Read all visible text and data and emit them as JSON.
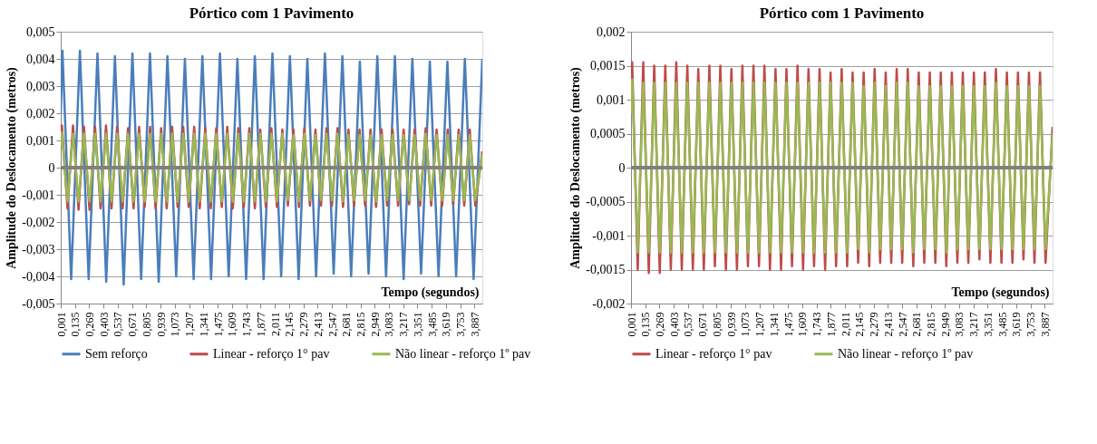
{
  "chart_data": [
    {
      "type": "line",
      "title": "Pórtico com 1 Pavimento",
      "xlabel": "Tempo (segundos)",
      "ylabel": "Amplitude do Deslocamento (metros)",
      "xlim": [
        0.001,
        3.96
      ],
      "xticks": [
        {
          "value": 0.001,
          "label": "0,001"
        },
        {
          "value": 0.135,
          "label": "0,135"
        },
        {
          "value": 0.269,
          "label": "0,269"
        },
        {
          "value": 0.403,
          "label": "0,403"
        },
        {
          "value": 0.537,
          "label": "0,537"
        },
        {
          "value": 0.671,
          "label": "0,671"
        },
        {
          "value": 0.805,
          "label": "0,805"
        },
        {
          "value": 0.939,
          "label": "0,939"
        },
        {
          "value": 1.073,
          "label": "1,073"
        },
        {
          "value": 1.207,
          "label": "1,207"
        },
        {
          "value": 1.341,
          "label": "1,341"
        },
        {
          "value": 1.475,
          "label": "1,475"
        },
        {
          "value": 1.609,
          "label": "1,609"
        },
        {
          "value": 1.743,
          "label": "1,743"
        },
        {
          "value": 1.877,
          "label": "1,877"
        },
        {
          "value": 2.011,
          "label": "2,011"
        },
        {
          "value": 2.145,
          "label": "2,145"
        },
        {
          "value": 2.279,
          "label": "2,279"
        },
        {
          "value": 2.413,
          "label": "2,413"
        },
        {
          "value": 2.547,
          "label": "2,547"
        },
        {
          "value": 2.681,
          "label": "2,681"
        },
        {
          "value": 2.815,
          "label": "2,815"
        },
        {
          "value": 2.949,
          "label": "2,949"
        },
        {
          "value": 3.083,
          "label": "3,083"
        },
        {
          "value": 3.217,
          "label": "3,217"
        },
        {
          "value": 3.351,
          "label": "3,351"
        },
        {
          "value": 3.485,
          "label": "3,485"
        },
        {
          "value": 3.619,
          "label": "3,619"
        },
        {
          "value": 3.753,
          "label": "3,753"
        },
        {
          "value": 3.887,
          "label": "3,887"
        }
      ],
      "ylim": [
        -0.005,
        0.005
      ],
      "yticks": [
        {
          "value": -0.005,
          "label": "-0,005"
        },
        {
          "value": -0.004,
          "label": "-0,004"
        },
        {
          "value": -0.003,
          "label": "-0,003"
        },
        {
          "value": -0.002,
          "label": "-0,002"
        },
        {
          "value": -0.001,
          "label": "-0,001"
        },
        0,
        {
          "value": 0.001,
          "label": "0,001"
        },
        {
          "value": 0.002,
          "label": "0,002"
        },
        {
          "value": 0.003,
          "label": "0,003"
        },
        {
          "value": 0.004,
          "label": "0,004"
        },
        {
          "value": 0.005,
          "label": "0,005"
        }
      ],
      "grid": "y",
      "legend": "bottom",
      "line_style": "solid",
      "ref_lines": [
        {
          "axis": "y",
          "value": 0,
          "color": "#808080"
        }
      ],
      "series": [
        {
          "name": "Sem reforço",
          "color": "#4a7ebb",
          "x": [
            0.001,
            0.017,
            0.099,
            0.181,
            0.263,
            0.346,
            0.428,
            0.51,
            0.592,
            0.674,
            0.756,
            0.839,
            0.921,
            1.003,
            1.085,
            1.167,
            1.249,
            1.331,
            1.413,
            1.496,
            1.578,
            1.66,
            1.742,
            1.824,
            1.906,
            1.989,
            2.071,
            2.153,
            2.235,
            2.317,
            2.399,
            2.482,
            2.564,
            2.646,
            2.728,
            2.81,
            2.892,
            2.974,
            3.056,
            3.139,
            3.221,
            3.303,
            3.385,
            3.467,
            3.549,
            3.632,
            3.714,
            3.796,
            3.878,
            3.96
          ],
          "values": [
            0.002,
            0.0043,
            -0.0041,
            0.0043,
            -0.0041,
            0.0042,
            -0.0042,
            0.0041,
            -0.0043,
            0.0042,
            -0.0041,
            0.0042,
            -0.0042,
            0.0041,
            -0.004,
            0.004,
            -0.0041,
            0.0041,
            -0.0041,
            0.0042,
            -0.004,
            0.004,
            -0.0041,
            0.0041,
            -0.0041,
            0.0042,
            -0.004,
            0.0041,
            -0.0041,
            0.004,
            -0.004,
            0.0042,
            -0.0039,
            0.0041,
            -0.004,
            0.0039,
            -0.0039,
            0.0041,
            -0.004,
            0.0041,
            -0.0041,
            0.004,
            -0.0039,
            0.0039,
            -0.004,
            0.0039,
            -0.004,
            0.004,
            -0.0041,
            0.004
          ]
        },
        {
          "name": "Linear - reforço 1° pav",
          "color": "#be4b48",
          "x": [
            0.001,
            0.012,
            0.064,
            0.116,
            0.168,
            0.219,
            0.271,
            0.323,
            0.375,
            0.426,
            0.478,
            0.53,
            0.582,
            0.633,
            0.685,
            0.737,
            0.789,
            0.84,
            0.892,
            0.944,
            0.996,
            1.047,
            1.099,
            1.151,
            1.203,
            1.254,
            1.306,
            1.358,
            1.41,
            1.461,
            1.513,
            1.565,
            1.617,
            1.668,
            1.72,
            1.772,
            1.824,
            1.875,
            1.927,
            1.979,
            2.031,
            2.082,
            2.134,
            2.186,
            2.238,
            2.289,
            2.341,
            2.393,
            2.445,
            2.496,
            2.548,
            2.6,
            2.652,
            2.703,
            2.755,
            2.807,
            2.859,
            2.91,
            2.962,
            3.014,
            3.066,
            3.117,
            3.169,
            3.221,
            3.273,
            3.324,
            3.376,
            3.428,
            3.48,
            3.531,
            3.583,
            3.635,
            3.687,
            3.738,
            3.79,
            3.842,
            3.894,
            3.96
          ],
          "values": [
            0.0009,
            0.00155,
            -0.0015,
            0.00155,
            -0.00155,
            0.0015,
            -0.00155,
            0.0015,
            -0.0015,
            0.00155,
            -0.0015,
            0.0015,
            -0.0015,
            0.00145,
            -0.0015,
            0.0015,
            -0.00145,
            0.0015,
            -0.0015,
            0.00145,
            -0.0015,
            0.0015,
            -0.00145,
            0.0015,
            -0.00145,
            0.0015,
            -0.0015,
            0.00145,
            -0.0015,
            0.00145,
            -0.00145,
            0.0015,
            -0.0015,
            0.00145,
            -0.00145,
            0.00145,
            -0.0015,
            0.0014,
            -0.00145,
            0.00145,
            -0.00145,
            0.0014,
            -0.0014,
            0.0014,
            -0.00145,
            0.00145,
            -0.0014,
            0.0014,
            -0.0014,
            0.00145,
            -0.0014,
            0.00145,
            -0.00145,
            0.0014,
            -0.0014,
            0.0014,
            -0.0014,
            0.0014,
            -0.00145,
            0.0014,
            -0.0014,
            0.0014,
            -0.0014,
            0.0014,
            -0.00135,
            0.0014,
            -0.0014,
            0.00145,
            -0.0014,
            0.0014,
            -0.0014,
            0.0014,
            -0.00135,
            0.0014,
            -0.0014,
            0.0014,
            -0.0014,
            0.0006
          ]
        },
        {
          "name": "Não linear - reforço 1º pav",
          "color": "#98b954",
          "x": [
            0.001,
            0.012,
            0.064,
            0.116,
            0.168,
            0.219,
            0.271,
            0.323,
            0.375,
            0.426,
            0.478,
            0.53,
            0.582,
            0.633,
            0.685,
            0.737,
            0.789,
            0.84,
            0.892,
            0.944,
            0.996,
            1.047,
            1.099,
            1.151,
            1.203,
            1.254,
            1.306,
            1.358,
            1.41,
            1.461,
            1.513,
            1.565,
            1.617,
            1.668,
            1.72,
            1.772,
            1.824,
            1.875,
            1.927,
            1.979,
            2.031,
            2.082,
            2.134,
            2.186,
            2.238,
            2.289,
            2.341,
            2.393,
            2.445,
            2.496,
            2.548,
            2.6,
            2.652,
            2.703,
            2.755,
            2.807,
            2.859,
            2.91,
            2.962,
            3.014,
            3.066,
            3.117,
            3.169,
            3.221,
            3.273,
            3.324,
            3.376,
            3.428,
            3.48,
            3.531,
            3.583,
            3.635,
            3.687,
            3.738,
            3.79,
            3.842,
            3.894,
            3.96
          ],
          "values": [
            0.0008,
            0.0013,
            -0.00125,
            0.00125,
            -0.00125,
            0.00125,
            -0.00125,
            0.00125,
            -0.00125,
            0.00125,
            -0.00125,
            0.00125,
            -0.00125,
            0.00125,
            -0.00125,
            0.00125,
            -0.00125,
            0.00125,
            -0.00125,
            0.00125,
            -0.00125,
            0.00125,
            -0.00125,
            0.00125,
            -0.00125,
            0.00125,
            -0.00125,
            0.00125,
            -0.00125,
            0.00125,
            -0.00125,
            0.00125,
            -0.00125,
            0.00125,
            -0.00125,
            0.00125,
            -0.00125,
            0.00125,
            -0.00125,
            0.00125,
            -0.00125,
            0.00125,
            -0.0012,
            0.0012,
            -0.00125,
            0.00125,
            -0.0012,
            0.0012,
            -0.0012,
            0.00125,
            -0.0012,
            0.00125,
            -0.00125,
            0.0012,
            -0.0012,
            0.0012,
            -0.0012,
            0.0012,
            -0.00125,
            0.0012,
            -0.0012,
            0.0012,
            -0.0012,
            0.0012,
            -0.0012,
            0.0012,
            -0.0012,
            0.00125,
            -0.0012,
            0.0012,
            -0.0012,
            0.0012,
            -0.0012,
            0.0012,
            -0.0012,
            0.0012,
            -0.0012,
            0.0005
          ]
        }
      ]
    },
    {
      "type": "line",
      "title": "Pórtico com 1 Pavimento",
      "xlabel": "Tempo (segundos)",
      "ylabel": "Amplitude do Deslocamento (metros)",
      "xlim": [
        0.001,
        3.96
      ],
      "xticks": [
        {
          "value": 0.001,
          "label": "0,001"
        },
        {
          "value": 0.135,
          "label": "0,135"
        },
        {
          "value": 0.269,
          "label": "0,269"
        },
        {
          "value": 0.403,
          "label": "0,403"
        },
        {
          "value": 0.537,
          "label": "0,537"
        },
        {
          "value": 0.671,
          "label": "0,671"
        },
        {
          "value": 0.805,
          "label": "0,805"
        },
        {
          "value": 0.939,
          "label": "0,939"
        },
        {
          "value": 1.073,
          "label": "1,073"
        },
        {
          "value": 1.207,
          "label": "1,207"
        },
        {
          "value": 1.341,
          "label": "1,341"
        },
        {
          "value": 1.475,
          "label": "1,475"
        },
        {
          "value": 1.609,
          "label": "1,609"
        },
        {
          "value": 1.743,
          "label": "1,743"
        },
        {
          "value": 1.877,
          "label": "1,877"
        },
        {
          "value": 2.011,
          "label": "2,011"
        },
        {
          "value": 2.145,
          "label": "2,145"
        },
        {
          "value": 2.279,
          "label": "2,279"
        },
        {
          "value": 2.413,
          "label": "2,413"
        },
        {
          "value": 2.547,
          "label": "2,547"
        },
        {
          "value": 2.681,
          "label": "2,681"
        },
        {
          "value": 2.815,
          "label": "2,815"
        },
        {
          "value": 2.949,
          "label": "2,949"
        },
        {
          "value": 3.083,
          "label": "3,083"
        },
        {
          "value": 3.217,
          "label": "3,217"
        },
        {
          "value": 3.351,
          "label": "3,351"
        },
        {
          "value": 3.485,
          "label": "3,485"
        },
        {
          "value": 3.619,
          "label": "3,619"
        },
        {
          "value": 3.753,
          "label": "3,753"
        },
        {
          "value": 3.887,
          "label": "3,887"
        }
      ],
      "ylim": [
        -0.002,
        0.002
      ],
      "yticks": [
        {
          "value": -0.002,
          "label": "-0,002"
        },
        {
          "value": -0.0015,
          "label": "-0,0015"
        },
        {
          "value": -0.001,
          "label": "-0,001"
        },
        {
          "value": -0.0005,
          "label": "-0,0005"
        },
        0,
        {
          "value": 0.0005,
          "label": "0,0005"
        },
        {
          "value": 0.001,
          "label": "0,001"
        },
        {
          "value": 0.0015,
          "label": "0,0015"
        },
        {
          "value": 0.002,
          "label": "0,002"
        }
      ],
      "grid": "y",
      "legend": "bottom",
      "line_style": "solid",
      "ref_lines": [
        {
          "axis": "y",
          "value": 0,
          "color": "#808080"
        }
      ],
      "series": [
        {
          "name": "Linear - reforço 1° pav",
          "color": "#be4b48",
          "x": [
            0.001,
            0.012,
            0.064,
            0.116,
            0.168,
            0.219,
            0.271,
            0.323,
            0.375,
            0.426,
            0.478,
            0.53,
            0.582,
            0.633,
            0.685,
            0.737,
            0.789,
            0.84,
            0.892,
            0.944,
            0.996,
            1.047,
            1.099,
            1.151,
            1.203,
            1.254,
            1.306,
            1.358,
            1.41,
            1.461,
            1.513,
            1.565,
            1.617,
            1.668,
            1.72,
            1.772,
            1.824,
            1.875,
            1.927,
            1.979,
            2.031,
            2.082,
            2.134,
            2.186,
            2.238,
            2.289,
            2.341,
            2.393,
            2.445,
            2.496,
            2.548,
            2.6,
            2.652,
            2.703,
            2.755,
            2.807,
            2.859,
            2.91,
            2.962,
            3.014,
            3.066,
            3.117,
            3.169,
            3.221,
            3.273,
            3.324,
            3.376,
            3.428,
            3.48,
            3.531,
            3.583,
            3.635,
            3.687,
            3.738,
            3.79,
            3.842,
            3.894,
            3.96
          ],
          "values": [
            0.0009,
            0.00155,
            -0.0015,
            0.00155,
            -0.00155,
            0.0015,
            -0.00155,
            0.0015,
            -0.0015,
            0.00155,
            -0.0015,
            0.0015,
            -0.0015,
            0.00145,
            -0.0015,
            0.0015,
            -0.00145,
            0.0015,
            -0.0015,
            0.00145,
            -0.0015,
            0.0015,
            -0.00145,
            0.0015,
            -0.00145,
            0.0015,
            -0.0015,
            0.00145,
            -0.0015,
            0.00145,
            -0.00145,
            0.0015,
            -0.0015,
            0.00145,
            -0.00145,
            0.00145,
            -0.0015,
            0.0014,
            -0.00145,
            0.00145,
            -0.00145,
            0.0014,
            -0.0014,
            0.0014,
            -0.00145,
            0.00145,
            -0.0014,
            0.0014,
            -0.0014,
            0.00145,
            -0.0014,
            0.00145,
            -0.00145,
            0.0014,
            -0.0014,
            0.0014,
            -0.0014,
            0.0014,
            -0.00145,
            0.0014,
            -0.0014,
            0.0014,
            -0.0014,
            0.0014,
            -0.00135,
            0.0014,
            -0.0014,
            0.00145,
            -0.0014,
            0.0014,
            -0.0014,
            0.0014,
            -0.00135,
            0.0014,
            -0.0014,
            0.0014,
            -0.0014,
            0.0006
          ]
        },
        {
          "name": "Não linear - reforço 1º pav",
          "color": "#98b954",
          "x": [
            0.001,
            0.012,
            0.064,
            0.116,
            0.168,
            0.219,
            0.271,
            0.323,
            0.375,
            0.426,
            0.478,
            0.53,
            0.582,
            0.633,
            0.685,
            0.737,
            0.789,
            0.84,
            0.892,
            0.944,
            0.996,
            1.047,
            1.099,
            1.151,
            1.203,
            1.254,
            1.306,
            1.358,
            1.41,
            1.461,
            1.513,
            1.565,
            1.617,
            1.668,
            1.72,
            1.772,
            1.824,
            1.875,
            1.927,
            1.979,
            2.031,
            2.082,
            2.134,
            2.186,
            2.238,
            2.289,
            2.341,
            2.393,
            2.445,
            2.496,
            2.548,
            2.6,
            2.652,
            2.703,
            2.755,
            2.807,
            2.859,
            2.91,
            2.962,
            3.014,
            3.066,
            3.117,
            3.169,
            3.221,
            3.273,
            3.324,
            3.376,
            3.428,
            3.48,
            3.531,
            3.583,
            3.635,
            3.687,
            3.738,
            3.79,
            3.842,
            3.894,
            3.96
          ],
          "values": [
            0.0008,
            0.0013,
            -0.00125,
            0.00125,
            -0.00125,
            0.00125,
            -0.00125,
            0.00125,
            -0.00125,
            0.00125,
            -0.00125,
            0.00125,
            -0.00125,
            0.00125,
            -0.00125,
            0.00125,
            -0.00125,
            0.00125,
            -0.00125,
            0.00125,
            -0.00125,
            0.00125,
            -0.00125,
            0.00125,
            -0.00125,
            0.00125,
            -0.00125,
            0.00125,
            -0.00125,
            0.00125,
            -0.00125,
            0.00125,
            -0.00125,
            0.00125,
            -0.00125,
            0.00125,
            -0.00125,
            0.00125,
            -0.00125,
            0.00125,
            -0.00125,
            0.00125,
            -0.0012,
            0.0012,
            -0.00125,
            0.00125,
            -0.0012,
            0.0012,
            -0.0012,
            0.00125,
            -0.0012,
            0.00125,
            -0.00125,
            0.0012,
            -0.0012,
            0.0012,
            -0.0012,
            0.0012,
            -0.00125,
            0.0012,
            -0.0012,
            0.0012,
            -0.0012,
            0.0012,
            -0.0012,
            0.0012,
            -0.0012,
            0.00125,
            -0.0012,
            0.0012,
            -0.0012,
            0.0012,
            -0.0012,
            0.0012,
            -0.0012,
            0.0012,
            -0.0012,
            0.0005
          ]
        }
      ]
    }
  ]
}
